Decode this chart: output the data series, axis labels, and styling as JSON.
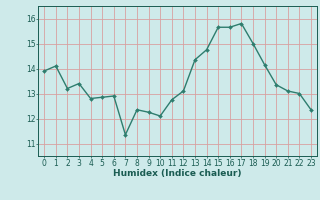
{
  "x": [
    0,
    1,
    2,
    3,
    4,
    5,
    6,
    7,
    8,
    9,
    10,
    11,
    12,
    13,
    14,
    15,
    16,
    17,
    18,
    19,
    20,
    21,
    22,
    23
  ],
  "y": [
    13.9,
    14.1,
    13.2,
    13.4,
    12.8,
    12.85,
    12.9,
    11.35,
    12.35,
    12.25,
    12.1,
    12.75,
    13.1,
    14.35,
    14.75,
    15.65,
    15.65,
    15.8,
    15.0,
    14.15,
    13.35,
    13.1,
    13.0,
    12.35
  ],
  "line_color": "#2e7d6e",
  "marker": "D",
  "marker_size": 2.0,
  "line_width": 1.0,
  "bg_color": "#ceeaea",
  "grid_color": "#d8a0a0",
  "xlabel": "Humidex (Indice chaleur)",
  "ylim": [
    10.5,
    16.5
  ],
  "xlim": [
    -0.5,
    23.5
  ],
  "yticks": [
    11,
    12,
    13,
    14,
    15,
    16
  ],
  "xticks": [
    0,
    1,
    2,
    3,
    4,
    5,
    6,
    7,
    8,
    9,
    10,
    11,
    12,
    13,
    14,
    15,
    16,
    17,
    18,
    19,
    20,
    21,
    22,
    23
  ],
  "tick_color": "#1a5c52",
  "label_fontsize": 6.5,
  "tick_fontsize": 5.5
}
